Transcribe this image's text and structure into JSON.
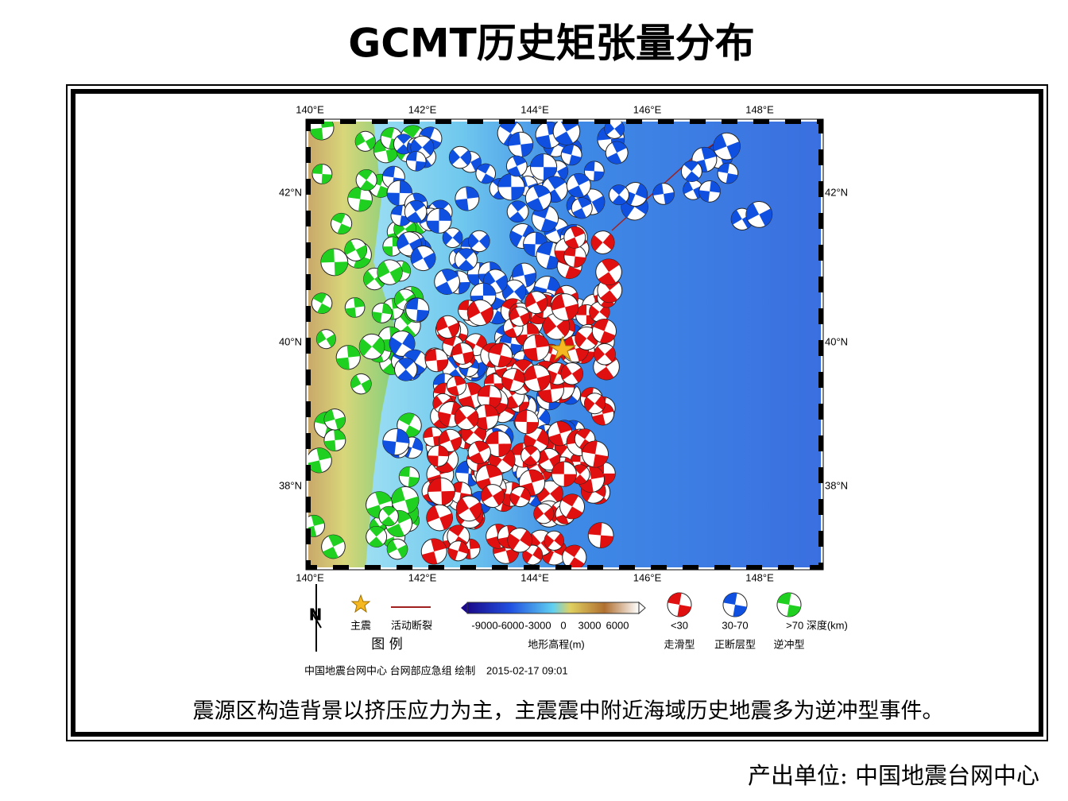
{
  "title": "GCMT历史矩张量分布",
  "map": {
    "lon_labels": [
      "140°E",
      "142°E",
      "144°E",
      "146°E",
      "148°E"
    ],
    "lat_labels": [
      "42°N",
      "40°N",
      "38°N"
    ]
  },
  "legend": {
    "north": "N",
    "mainshock": "主震",
    "fault": "活动断裂",
    "legend_title": "图 例",
    "colorbar_ticks": [
      "-9000",
      "-6000",
      "-3000",
      "0",
      "3000",
      "6000"
    ],
    "colorbar_title": "地形高程(m)",
    "depth_labels": [
      "<30",
      "30-70",
      ">70 深度(km)"
    ],
    "mechanism_labels": [
      "走滑型",
      "正断层型",
      "逆冲型"
    ]
  },
  "credit": "中国地震台网中心 台网部应急组 绘制",
  "timestamp": "2015-02-17 09:01",
  "caption": "震源区构造背景以挤压应力为主，主震震中附近海域历史地震多为逆冲型事件。",
  "footer": "产出单位: 中国地震台网中心"
}
